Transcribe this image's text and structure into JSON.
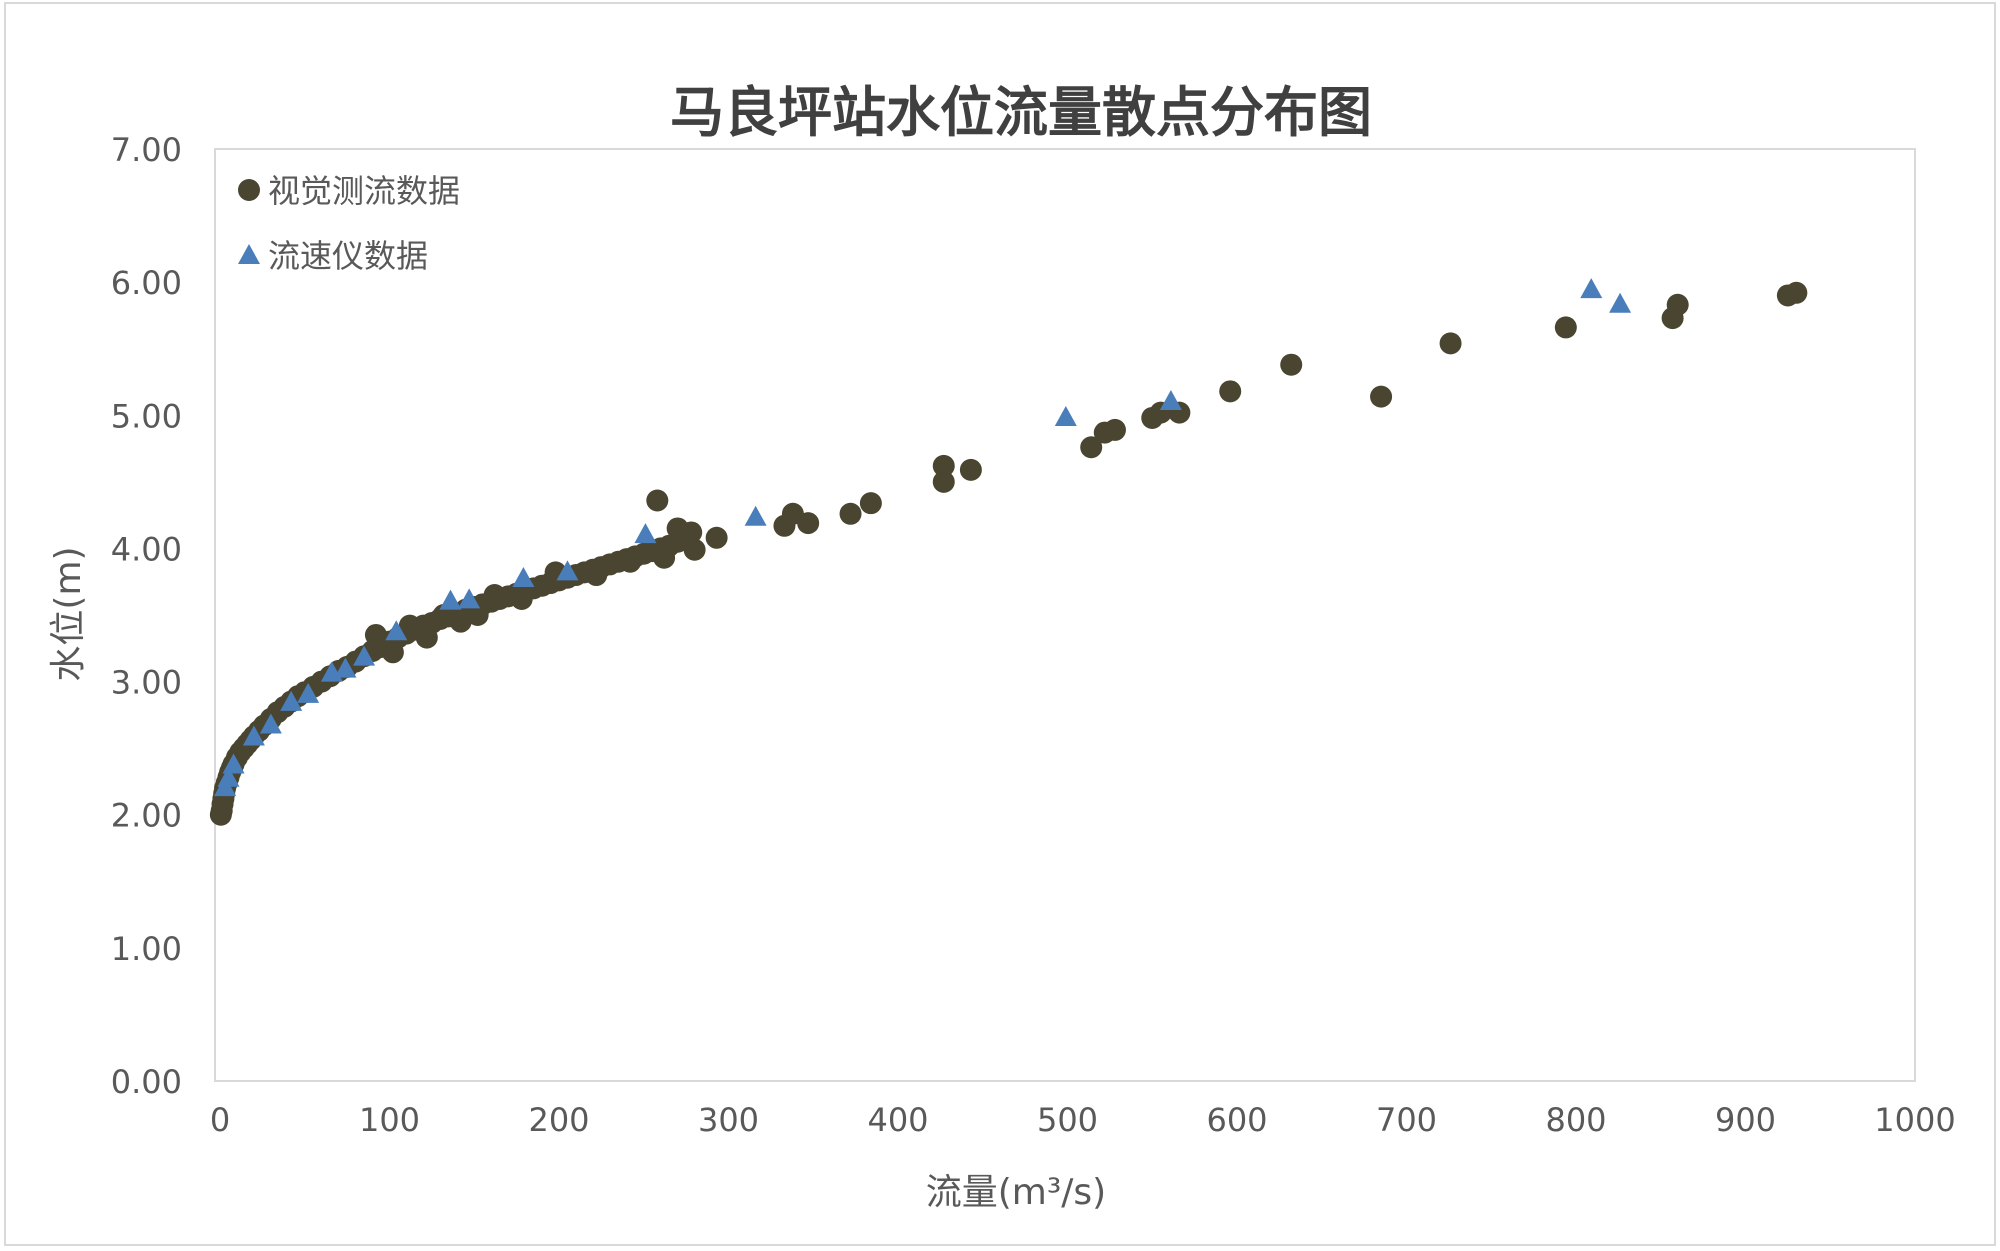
{
  "chart_data": {
    "type": "scatter",
    "title": "马良坪站水位流量散点分布图",
    "xlabel": "流量(m³/s)",
    "ylabel": "水位(m)",
    "xlim": [
      0,
      1000
    ],
    "ylim": [
      0,
      7
    ],
    "xticks": [
      "0",
      "100",
      "200",
      "300",
      "400",
      "500",
      "600",
      "700",
      "800",
      "900",
      "1000"
    ],
    "yticks": [
      "0.00",
      "1.00",
      "2.00",
      "3.00",
      "4.00",
      "5.00",
      "6.00",
      "7.00"
    ],
    "grid": false,
    "legend_position": "top-left",
    "series": [
      {
        "name": "视觉测流数据",
        "marker": "circle",
        "color": "#4a4530",
        "points": [
          [
            0.5,
            2.0
          ],
          [
            1,
            2.03
          ],
          [
            1.5,
            2.08
          ],
          [
            2,
            2.12
          ],
          [
            2.5,
            2.16
          ],
          [
            3,
            2.2
          ],
          [
            4,
            2.24
          ],
          [
            5,
            2.28
          ],
          [
            6,
            2.32
          ],
          [
            7,
            2.35
          ],
          [
            8,
            2.38
          ],
          [
            10,
            2.43
          ],
          [
            12,
            2.47
          ],
          [
            14,
            2.5
          ],
          [
            16,
            2.53
          ],
          [
            18,
            2.56
          ],
          [
            20,
            2.59
          ],
          [
            23,
            2.63
          ],
          [
            26,
            2.67
          ],
          [
            30,
            2.72
          ],
          [
            34,
            2.77
          ],
          [
            38,
            2.81
          ],
          [
            42,
            2.85
          ],
          [
            46,
            2.89
          ],
          [
            50,
            2.92
          ],
          [
            55,
            2.96
          ],
          [
            60,
            3.0
          ],
          [
            65,
            3.04
          ],
          [
            70,
            3.08
          ],
          [
            75,
            3.11
          ],
          [
            80,
            3.15
          ],
          [
            85,
            3.19
          ],
          [
            90,
            3.23
          ],
          [
            95,
            3.26
          ],
          [
            100,
            3.3
          ],
          [
            105,
            3.33
          ],
          [
            110,
            3.36
          ],
          [
            115,
            3.39
          ],
          [
            120,
            3.42
          ],
          [
            125,
            3.44
          ],
          [
            130,
            3.47
          ],
          [
            135,
            3.49
          ],
          [
            140,
            3.51
          ],
          [
            145,
            3.54
          ],
          [
            150,
            3.56
          ],
          [
            155,
            3.58
          ],
          [
            160,
            3.6
          ],
          [
            165,
            3.62
          ],
          [
            170,
            3.64
          ],
          [
            175,
            3.66
          ],
          [
            180,
            3.68
          ],
          [
            185,
            3.7
          ],
          [
            190,
            3.72
          ],
          [
            195,
            3.74
          ],
          [
            200,
            3.76
          ],
          [
            205,
            3.78
          ],
          [
            210,
            3.8
          ],
          [
            215,
            3.82
          ],
          [
            220,
            3.84
          ],
          [
            225,
            3.86
          ],
          [
            230,
            3.88
          ],
          [
            235,
            3.9
          ],
          [
            240,
            3.92
          ],
          [
            245,
            3.94
          ],
          [
            250,
            3.96
          ],
          [
            255,
            3.98
          ],
          [
            260,
            4.0
          ],
          [
            265,
            4.02
          ],
          [
            270,
            4.05
          ],
          [
            275,
            4.07
          ],
          [
            92,
            3.35
          ],
          [
            102,
            3.22
          ],
          [
            112,
            3.42
          ],
          [
            122,
            3.33
          ],
          [
            132,
            3.5
          ],
          [
            142,
            3.45
          ],
          [
            152,
            3.5
          ],
          [
            162,
            3.65
          ],
          [
            178,
            3.62
          ],
          [
            198,
            3.82
          ],
          [
            222,
            3.8
          ],
          [
            242,
            3.9
          ],
          [
            262,
            3.93
          ],
          [
            270,
            4.15
          ],
          [
            278,
            4.12
          ],
          [
            258,
            4.36
          ],
          [
            280,
            3.99
          ],
          [
            293,
            4.08
          ],
          [
            333,
            4.17
          ],
          [
            338,
            4.26
          ],
          [
            347,
            4.19
          ],
          [
            372,
            4.26
          ],
          [
            384,
            4.34
          ],
          [
            427,
            4.5
          ],
          [
            427,
            4.62
          ],
          [
            443,
            4.59
          ],
          [
            514,
            4.76
          ],
          [
            522,
            4.87
          ],
          [
            528,
            4.89
          ],
          [
            550,
            4.98
          ],
          [
            555,
            5.02
          ],
          [
            566,
            5.02
          ],
          [
            596,
            5.18
          ],
          [
            632,
            5.38
          ],
          [
            685,
            5.14
          ],
          [
            726,
            5.54
          ],
          [
            794,
            5.66
          ],
          [
            857,
            5.73
          ],
          [
            860,
            5.83
          ],
          [
            925,
            5.9
          ],
          [
            930,
            5.92
          ]
        ]
      },
      {
        "name": "流速仪数据",
        "marker": "triangle",
        "color": "#4a7ebb",
        "points": [
          [
            3,
            2.2
          ],
          [
            5,
            2.27
          ],
          [
            8,
            2.37
          ],
          [
            20,
            2.58
          ],
          [
            30,
            2.67
          ],
          [
            42,
            2.84
          ],
          [
            52,
            2.9
          ],
          [
            66,
            3.06
          ],
          [
            74,
            3.09
          ],
          [
            85,
            3.18
          ],
          [
            104,
            3.37
          ],
          [
            136,
            3.6
          ],
          [
            147,
            3.61
          ],
          [
            179,
            3.77
          ],
          [
            205,
            3.82
          ],
          [
            251,
            4.1
          ],
          [
            316,
            4.23
          ],
          [
            499,
            4.98
          ],
          [
            561,
            5.1
          ],
          [
            809,
            5.94
          ],
          [
            826,
            5.83
          ]
        ]
      }
    ]
  }
}
